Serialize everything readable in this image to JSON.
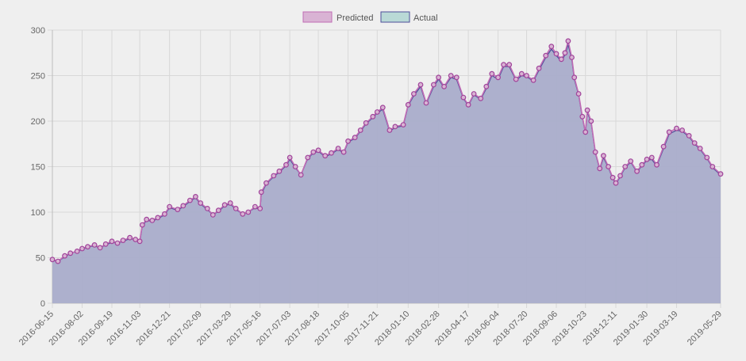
{
  "chart_data": {
    "type": "line",
    "title": "",
    "xlabel": "",
    "ylabel": "",
    "ylim": [
      0,
      300
    ],
    "y_ticks": [
      0,
      50,
      100,
      150,
      200,
      250,
      300
    ],
    "x_tick_labels": [
      "2016-06-15",
      "2016-08-02",
      "2016-09-19",
      "2016-11-03",
      "2016-12-21",
      "2017-02-09",
      "2017-03-29",
      "2017-05-16",
      "2017-07-03",
      "2017-08-18",
      "2017-10-05",
      "2017-11-21",
      "2018-01-10",
      "2018-02-28",
      "2018-04-17",
      "2018-06-04",
      "2018-07-20",
      "2018-09-06",
      "2018-10-23",
      "2018-12-11",
      "2019-01-30",
      "2019-03-19",
      "2019-05-29"
    ],
    "grid": true,
    "legend_position": "top-center",
    "colors": {
      "predicted_fill": "#d9b3d4",
      "predicted_line": "#c06cb5",
      "predicted_point": "#a0449a",
      "actual_fill": "#aaaecb",
      "actual_line": "#4e4e9a",
      "legend_actual_box": "#b9d9d6",
      "grid": "#d8d8d8",
      "background": "#efefef"
    },
    "x": [
      "2016-06-15",
      "2016-06-24",
      "2016-07-05",
      "2016-07-14",
      "2016-07-25",
      "2016-08-02",
      "2016-08-11",
      "2016-08-22",
      "2016-08-31",
      "2016-09-09",
      "2016-09-19",
      "2016-09-28",
      "2016-10-07",
      "2016-10-18",
      "2016-10-27",
      "2016-11-03",
      "2016-11-07",
      "2016-11-14",
      "2016-11-23",
      "2016-12-02",
      "2016-12-13",
      "2016-12-21",
      "2017-01-03",
      "2017-01-12",
      "2017-01-23",
      "2017-02-01",
      "2017-02-09",
      "2017-02-20",
      "2017-03-01",
      "2017-03-10",
      "2017-03-20",
      "2017-03-29",
      "2017-04-07",
      "2017-04-18",
      "2017-04-27",
      "2017-05-08",
      "2017-05-16",
      "2017-05-18",
      "2017-05-26",
      "2017-06-07",
      "2017-06-16",
      "2017-06-27",
      "2017-07-03",
      "2017-07-12",
      "2017-07-21",
      "2017-08-01",
      "2017-08-10",
      "2017-08-18",
      "2017-08-29",
      "2017-09-08",
      "2017-09-19",
      "2017-09-28",
      "2017-10-05",
      "2017-10-16",
      "2017-10-25",
      "2017-11-03",
      "2017-11-14",
      "2017-11-21",
      "2017-11-30",
      "2017-12-11",
      "2017-12-20",
      "2018-01-02",
      "2018-01-10",
      "2018-01-19",
      "2018-01-30",
      "2018-02-08",
      "2018-02-20",
      "2018-02-28",
      "2018-03-09",
      "2018-03-20",
      "2018-03-29",
      "2018-04-09",
      "2018-04-17",
      "2018-04-26",
      "2018-05-07",
      "2018-05-16",
      "2018-05-25",
      "2018-06-04",
      "2018-06-13",
      "2018-06-22",
      "2018-07-03",
      "2018-07-12",
      "2018-07-20",
      "2018-07-31",
      "2018-08-09",
      "2018-08-20",
      "2018-08-29",
      "2018-09-06",
      "2018-09-14",
      "2018-09-20",
      "2018-09-25",
      "2018-10-01",
      "2018-10-05",
      "2018-10-12",
      "2018-10-18",
      "2018-10-23",
      "2018-10-26",
      "2018-11-01",
      "2018-11-08",
      "2018-11-15",
      "2018-11-21",
      "2018-11-29",
      "2018-12-06",
      "2018-12-11",
      "2018-12-18",
      "2018-12-26",
      "2019-01-04",
      "2019-01-14",
      "2019-01-22",
      "2019-01-30",
      "2019-02-07",
      "2019-02-15",
      "2019-02-26",
      "2019-03-07",
      "2019-03-19",
      "2019-03-28",
      "2019-04-08",
      "2019-04-17",
      "2019-04-26",
      "2019-05-07",
      "2019-05-16",
      "2019-05-29"
    ],
    "series": [
      {
        "name": "Predicted",
        "values": [
          48,
          46,
          52,
          55,
          57,
          60,
          62,
          64,
          61,
          65,
          68,
          66,
          69,
          72,
          70,
          68,
          86,
          92,
          91,
          94,
          98,
          106,
          103,
          107,
          113,
          117,
          110,
          104,
          97,
          102,
          108,
          110,
          104,
          98,
          100,
          106,
          104,
          122,
          132,
          140,
          145,
          152,
          160,
          150,
          141,
          160,
          166,
          168,
          162,
          165,
          170,
          166,
          178,
          182,
          190,
          198,
          205,
          210,
          215,
          190,
          194,
          196,
          218,
          230,
          240,
          220,
          240,
          248,
          238,
          250,
          248,
          226,
          218,
          230,
          225,
          238,
          252,
          248,
          262,
          262,
          246,
          252,
          250,
          245,
          258,
          272,
          282,
          274,
          268,
          275,
          288,
          270,
          248,
          230,
          205,
          188,
          212,
          200,
          166,
          148,
          162,
          150,
          138,
          132,
          140,
          150,
          156,
          145,
          152,
          158,
          160,
          152,
          172,
          188,
          192,
          190,
          184,
          176,
          170,
          160,
          150,
          142
        ]
      },
      {
        "name": "Actual",
        "values": [
          47,
          46,
          51,
          55,
          57,
          59,
          62,
          63,
          61,
          64,
          67,
          66,
          68,
          71,
          70,
          67,
          85,
          91,
          90,
          93,
          97,
          105,
          102,
          106,
          112,
          116,
          109,
          103,
          97,
          101,
          107,
          109,
          103,
          98,
          100,
          105,
          103,
          120,
          131,
          139,
          144,
          151,
          158,
          149,
          141,
          159,
          165,
          167,
          161,
          164,
          169,
          165,
          177,
          181,
          189,
          197,
          204,
          209,
          213,
          189,
          193,
          195,
          217,
          228,
          238,
          219,
          238,
          246,
          237,
          248,
          246,
          225,
          217,
          229,
          224,
          236,
          250,
          246,
          260,
          260,
          245,
          250,
          249,
          244,
          256,
          270,
          279,
          272,
          266,
          273,
          284,
          268,
          246,
          229,
          204,
          187,
          210,
          199,
          165,
          147,
          160,
          149,
          137,
          131,
          139,
          149,
          155,
          144,
          151,
          157,
          158,
          151,
          170,
          186,
          190,
          189,
          183,
          175,
          169,
          159,
          149,
          141
        ]
      }
    ]
  },
  "legend": {
    "items": [
      {
        "label": "Predicted"
      },
      {
        "label": "Actual"
      }
    ]
  }
}
